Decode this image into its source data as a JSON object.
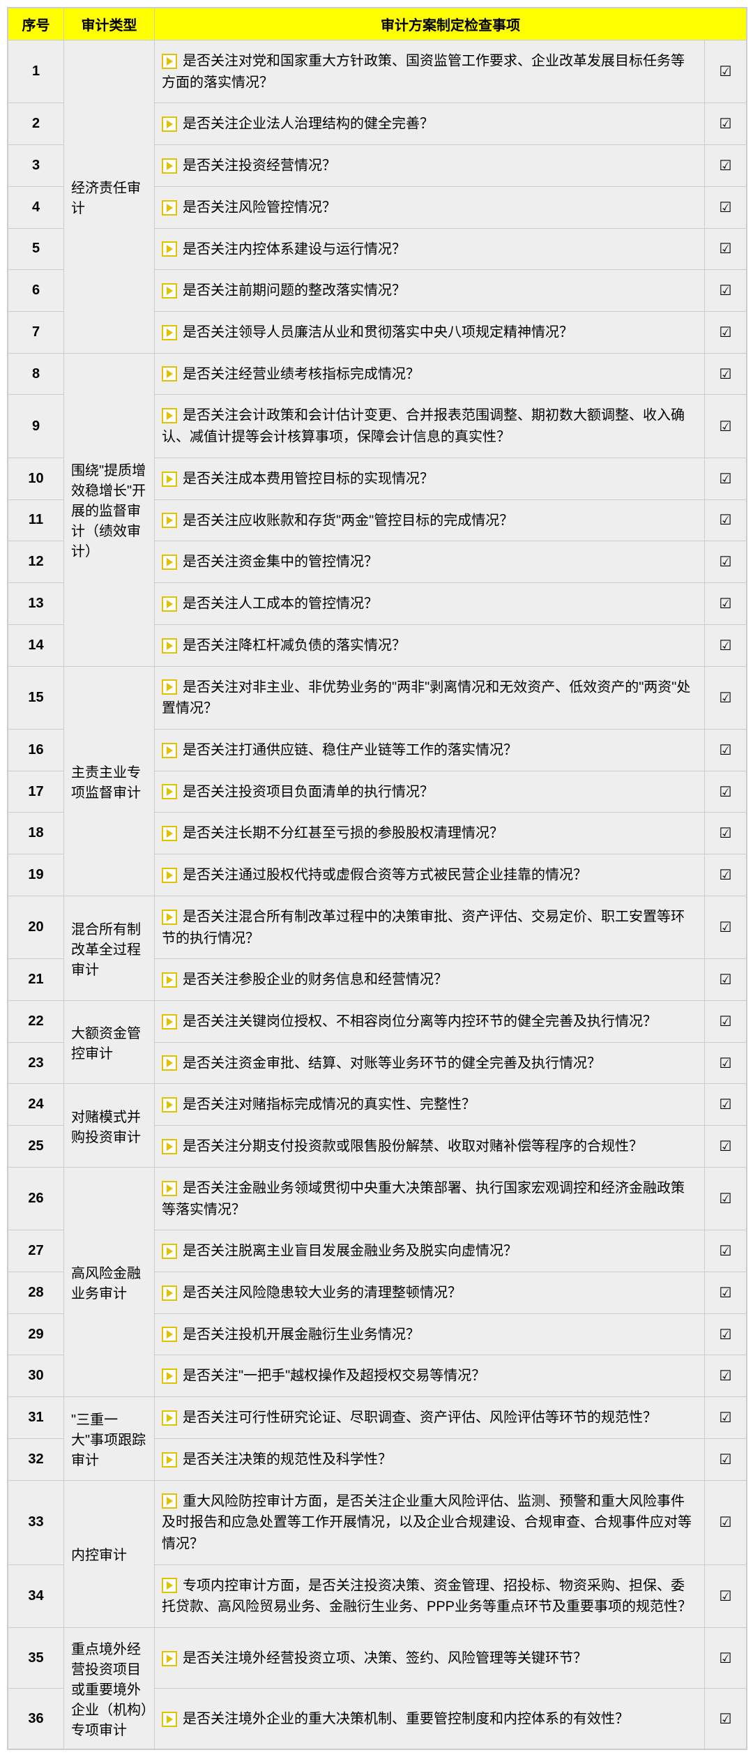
{
  "colors": {
    "header_bg": "#ffff00",
    "cell_bg": "#eeeeee",
    "border": "#cccccc",
    "bullet_border": "#e0c200",
    "bullet_arrow": "#e0c200",
    "bullet_bg": "#ffffff"
  },
  "headers": {
    "num": "序号",
    "type": "审计类型",
    "item": "审计方案制定检查事项",
    "check": ""
  },
  "check_mark": "☑",
  "groups": [
    {
      "type_label": "经济责任审计",
      "rows": [
        {
          "num": "1",
          "item": "是否关注对党和国家重大方针政策、国资监管工作要求、企业改革发展目标任务等方面的落实情况？"
        },
        {
          "num": "2",
          "item": "是否关注企业法人治理结构的健全完善？"
        },
        {
          "num": "3",
          "item": "是否关注投资经营情况？"
        },
        {
          "num": "4",
          "item": "是否关注风险管控情况？"
        },
        {
          "num": "5",
          "item": "是否关注内控体系建设与运行情况？"
        },
        {
          "num": "6",
          "item": "是否关注前期问题的整改落实情况？"
        },
        {
          "num": "7",
          "item": "是否关注领导人员廉洁从业和贯彻落实中央八项规定精神情况？"
        }
      ]
    },
    {
      "type_label": "围绕\"提质增效稳增长\"开展的监督审计（绩效审计）",
      "rows": [
        {
          "num": "8",
          "item": "是否关注经营业绩考核指标完成情况？"
        },
        {
          "num": "9",
          "item": "是否关注会计政策和会计估计变更、合并报表范围调整、期初数大额调整、收入确认、减值计提等会计核算事项，保障会计信息的真实性？"
        },
        {
          "num": "10",
          "item": "是否关注成本费用管控目标的实现情况？"
        },
        {
          "num": "11",
          "item": "是否关注应收账款和存货\"两金\"管控目标的完成情况？"
        },
        {
          "num": "12",
          "item": "是否关注资金集中的管控情况？"
        },
        {
          "num": "13",
          "item": "是否关注人工成本的管控情况？"
        },
        {
          "num": "14",
          "item": "是否关注降杠杆减负债的落实情况？"
        }
      ]
    },
    {
      "type_label": "主责主业专项监督审计",
      "rows": [
        {
          "num": "15",
          "item": "是否关注对非主业、非优势业务的\"两非\"剥离情况和无效资产、低效资产的\"两资\"处置情况？"
        },
        {
          "num": "16",
          "item": "是否关注打通供应链、稳住产业链等工作的落实情况？"
        },
        {
          "num": "17",
          "item": "是否关注投资项目负面清单的执行情况？"
        },
        {
          "num": "18",
          "item": "是否关注长期不分红甚至亏损的参股股权清理情况？"
        },
        {
          "num": "19",
          "item": "是否关注通过股权代持或虚假合资等方式被民营企业挂靠的情况？"
        }
      ]
    },
    {
      "type_label": "混合所有制改革全过程审计",
      "rows": [
        {
          "num": "20",
          "item": "是否关注混合所有制改革过程中的决策审批、资产评估、交易定价、职工安置等环节的执行情况？"
        },
        {
          "num": "21",
          "item": "是否关注参股企业的财务信息和经营情况？"
        }
      ]
    },
    {
      "type_label": "大额资金管控审计",
      "rows": [
        {
          "num": "22",
          "item": "是否关注关键岗位授权、不相容岗位分离等内控环节的健全完善及执行情况？"
        },
        {
          "num": "23",
          "item": "是否关注资金审批、结算、对账等业务环节的健全完善及执行情况？"
        }
      ]
    },
    {
      "type_label": "对赌模式并购投资审计",
      "rows": [
        {
          "num": "24",
          "item": "是否关注对赌指标完成情况的真实性、完整性？"
        },
        {
          "num": "25",
          "item": "是否关注分期支付投资款或限售股份解禁、收取对赌补偿等程序的合规性？"
        }
      ]
    },
    {
      "type_label": "高风险金融\n业务审计",
      "rows": [
        {
          "num": "26",
          "item": "是否关注金融业务领域贯彻中央重大决策部署、执行国家宏观调控和经济金融政策等落实情况？"
        },
        {
          "num": "27",
          "item": "是否关注脱离主业盲目发展金融业务及脱实向虚情况？"
        },
        {
          "num": "28",
          "item": "是否关注风险隐患较大业务的清理整顿情况？"
        },
        {
          "num": "29",
          "item": "是否关注投机开展金融衍生业务情况？"
        },
        {
          "num": "30",
          "item": "是否关注\"一把手\"越权操作及超授权交易等情况？"
        }
      ]
    },
    {
      "type_label": "\"三重一大\"事项跟踪审计",
      "rows": [
        {
          "num": "31",
          "item": "是否关注可行性研究论证、尽职调查、资产评估、风险评估等环节的规范性？"
        },
        {
          "num": "32",
          "item": "是否关注决策的规范性及科学性？"
        }
      ]
    },
    {
      "type_label": "内控审计",
      "rows": [
        {
          "num": "33",
          "item": "重大风险防控审计方面，是否关注企业重大风险评估、监测、预警和重大风险事件及时报告和应急处置等工作开展情况，以及企业合规建设、合规审查、合规事件应对等情况？"
        },
        {
          "num": "34",
          "item": "专项内控审计方面，是否关注投资决策、资金管理、招投标、物资采购、担保、委托贷款、高风险贸易业务、金融衍生业务、PPP业务等重点环节及重要事项的规范性？"
        }
      ]
    },
    {
      "type_label": "重点境外经营投资项目或重要境外企业（机构）专项审计",
      "rows": [
        {
          "num": "35",
          "item": "是否关注境外经营投资立项、决策、签约、风险管理等关键环节？"
        },
        {
          "num": "36",
          "item": "是否关注境外企业的重大决策机制、重要管控制度和内控体系的有效性？"
        }
      ]
    }
  ]
}
